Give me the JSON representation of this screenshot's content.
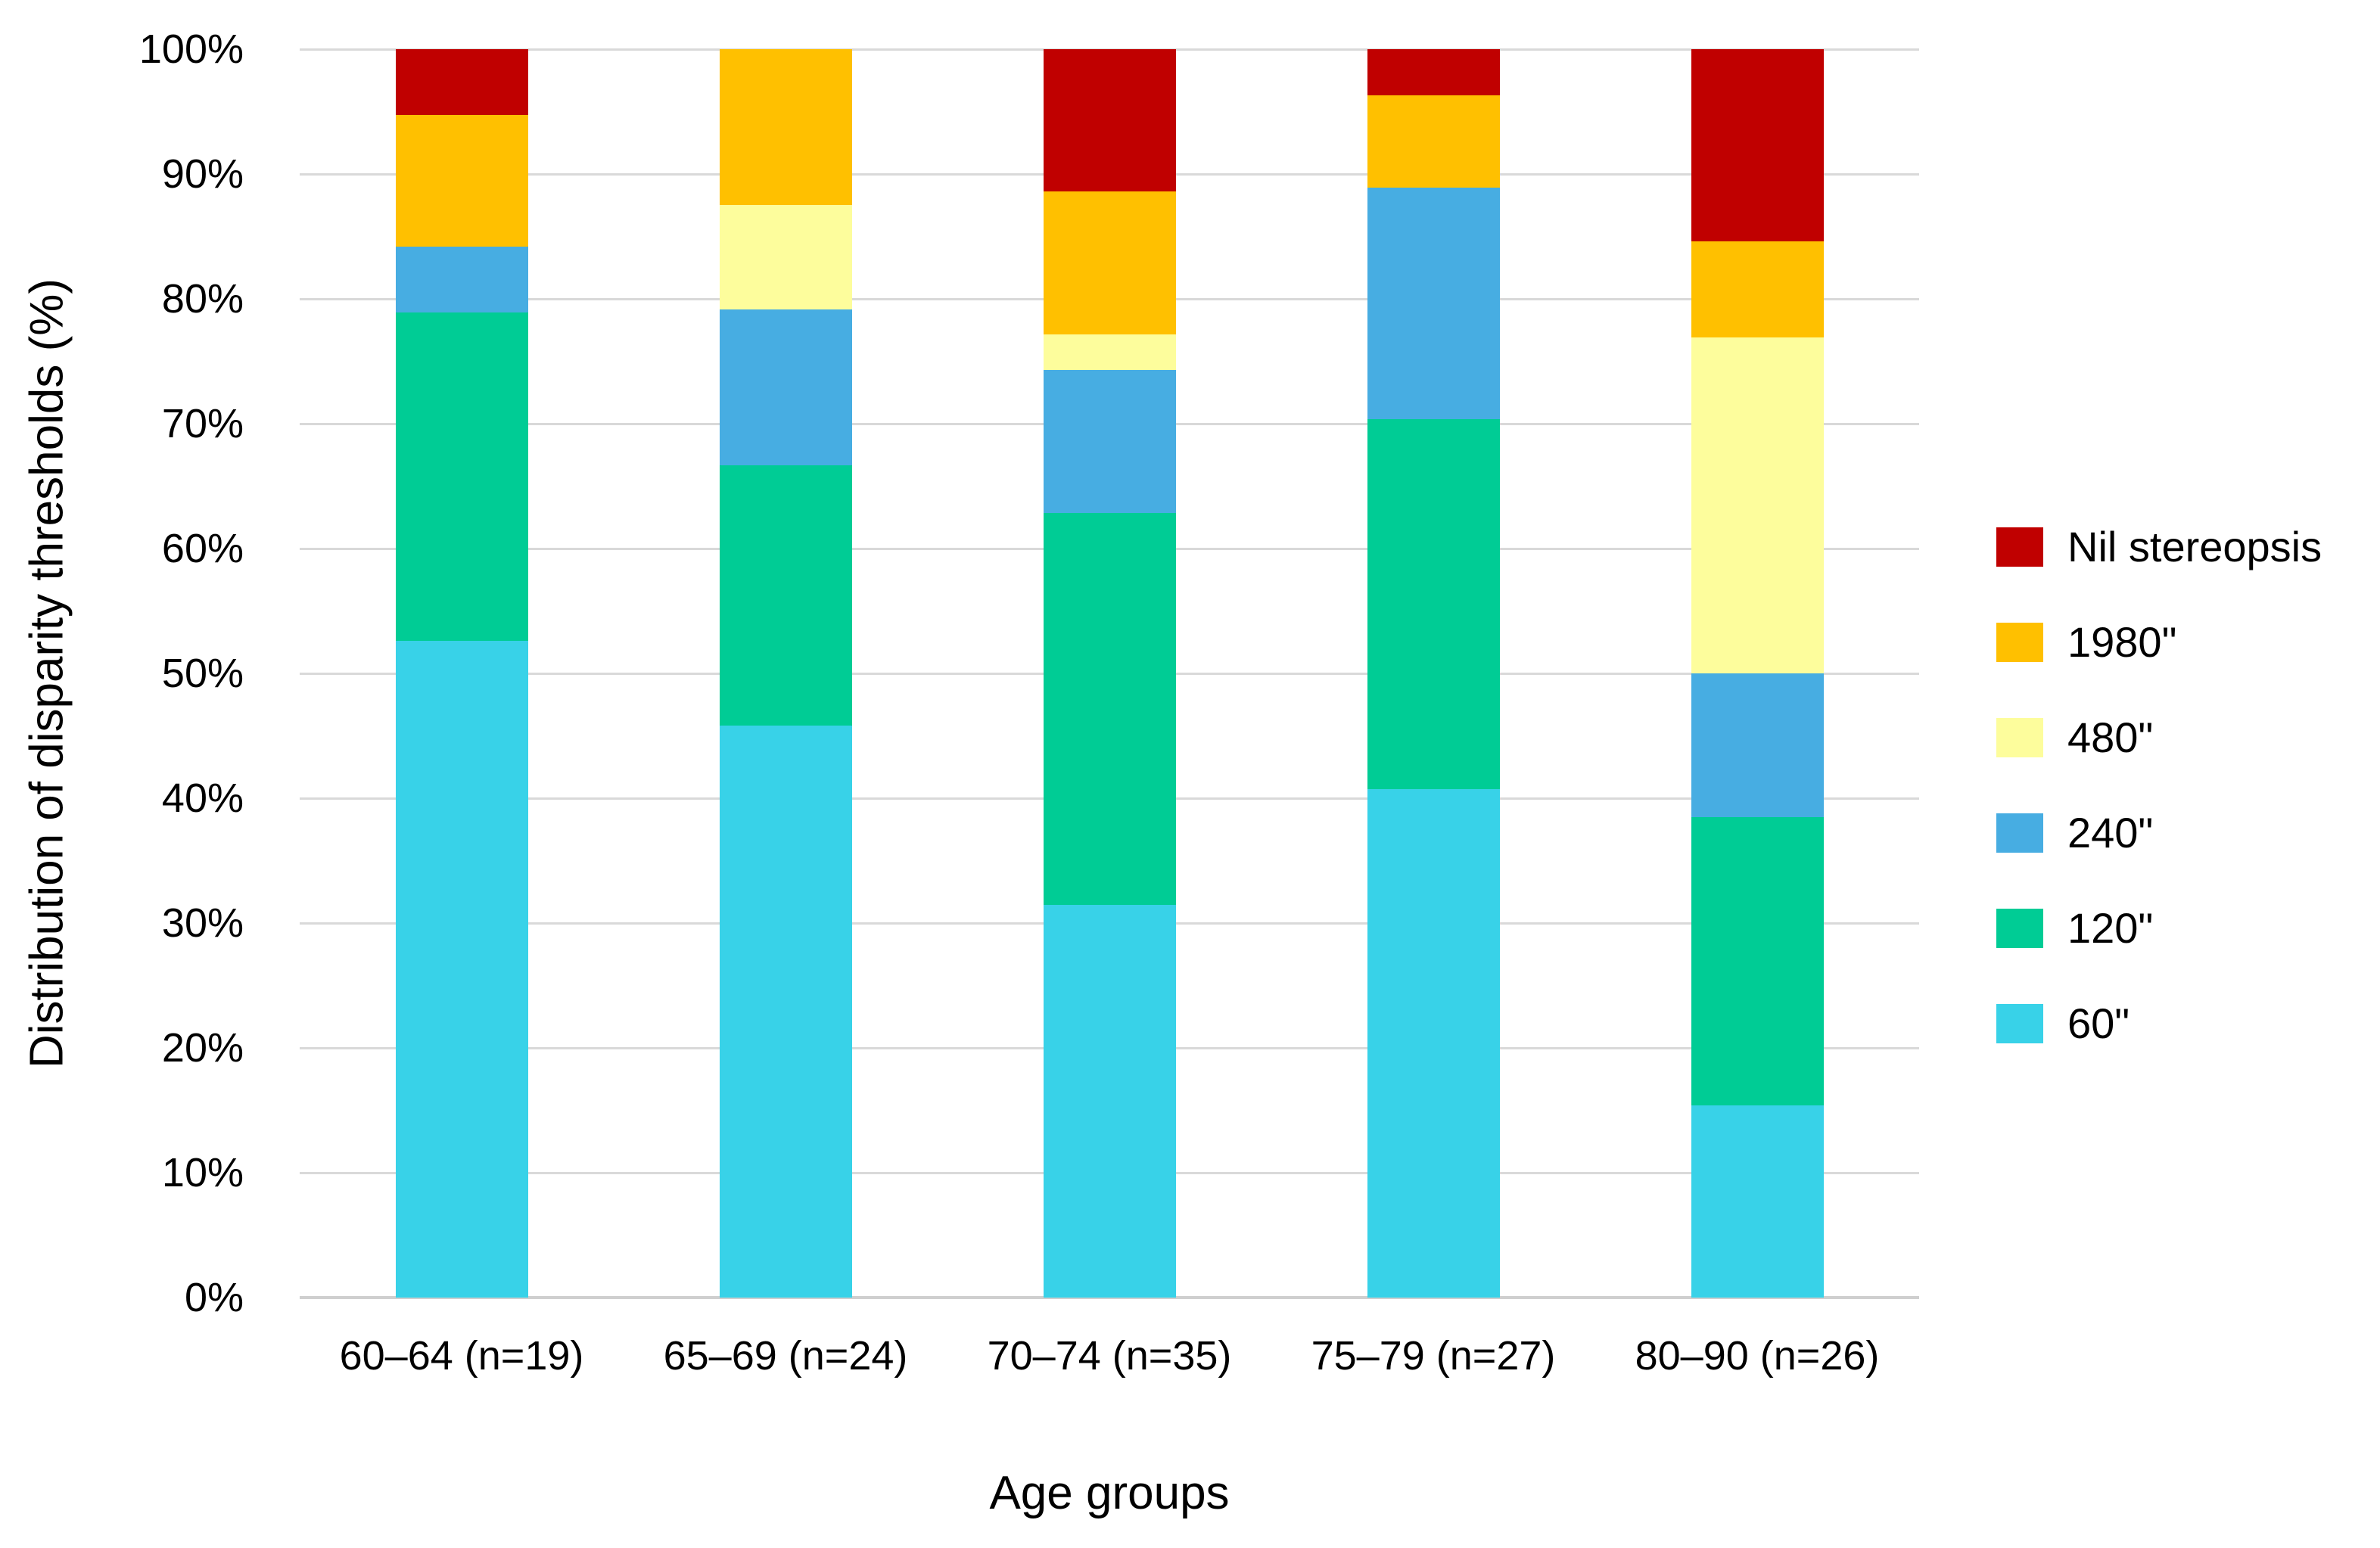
{
  "chart_data": {
    "type": "bar",
    "stacked": true,
    "orientation": "vertical",
    "title": "",
    "xlabel": "Age groups",
    "ylabel": "Distribution of disparity thresholds (%)",
    "categories": [
      "60–64 (n=19)",
      "65–69 (n=24)",
      "70–74 (n=35)",
      "75–79 (n=27)",
      "80–90 (n=26)"
    ],
    "series": [
      {
        "name": "60\"",
        "color": "#38D2E8",
        "values": [
          52.6,
          45.8,
          31.4,
          40.7,
          15.4
        ]
      },
      {
        "name": "120\"",
        "color": "#00CC95",
        "values": [
          26.3,
          20.8,
          31.4,
          29.6,
          23.1
        ]
      },
      {
        "name": "240\"",
        "color": "#47ADE2",
        "values": [
          5.3,
          12.5,
          11.4,
          18.5,
          11.5
        ]
      },
      {
        "name": "480\"",
        "color": "#FDFD9C",
        "values": [
          0,
          8.3,
          2.9,
          0,
          26.9
        ]
      },
      {
        "name": "1980\"",
        "color": "#FFC000",
        "values": [
          10.5,
          12.5,
          11.4,
          7.4,
          7.7
        ]
      },
      {
        "name": "Nil stereopsis",
        "color": "#C00000",
        "values": [
          5.3,
          0,
          11.4,
          3.7,
          15.4
        ]
      }
    ],
    "legend_order": [
      "Nil stereopsis",
      "1980\"",
      "480\"",
      "240\"",
      "120\"",
      "60\""
    ],
    "legend_position": "right",
    "ylim": [
      0,
      100
    ],
    "ytick_step": 10,
    "ytick_labels": [
      "0%",
      "10%",
      "20%",
      "30%",
      "40%",
      "50%",
      "60%",
      "70%",
      "80%",
      "90%",
      "100%"
    ],
    "grid": true,
    "gridline_color": "#D9D9D9",
    "baseline_color": "#CFCFCF",
    "axis_text_color": "#000000"
  }
}
